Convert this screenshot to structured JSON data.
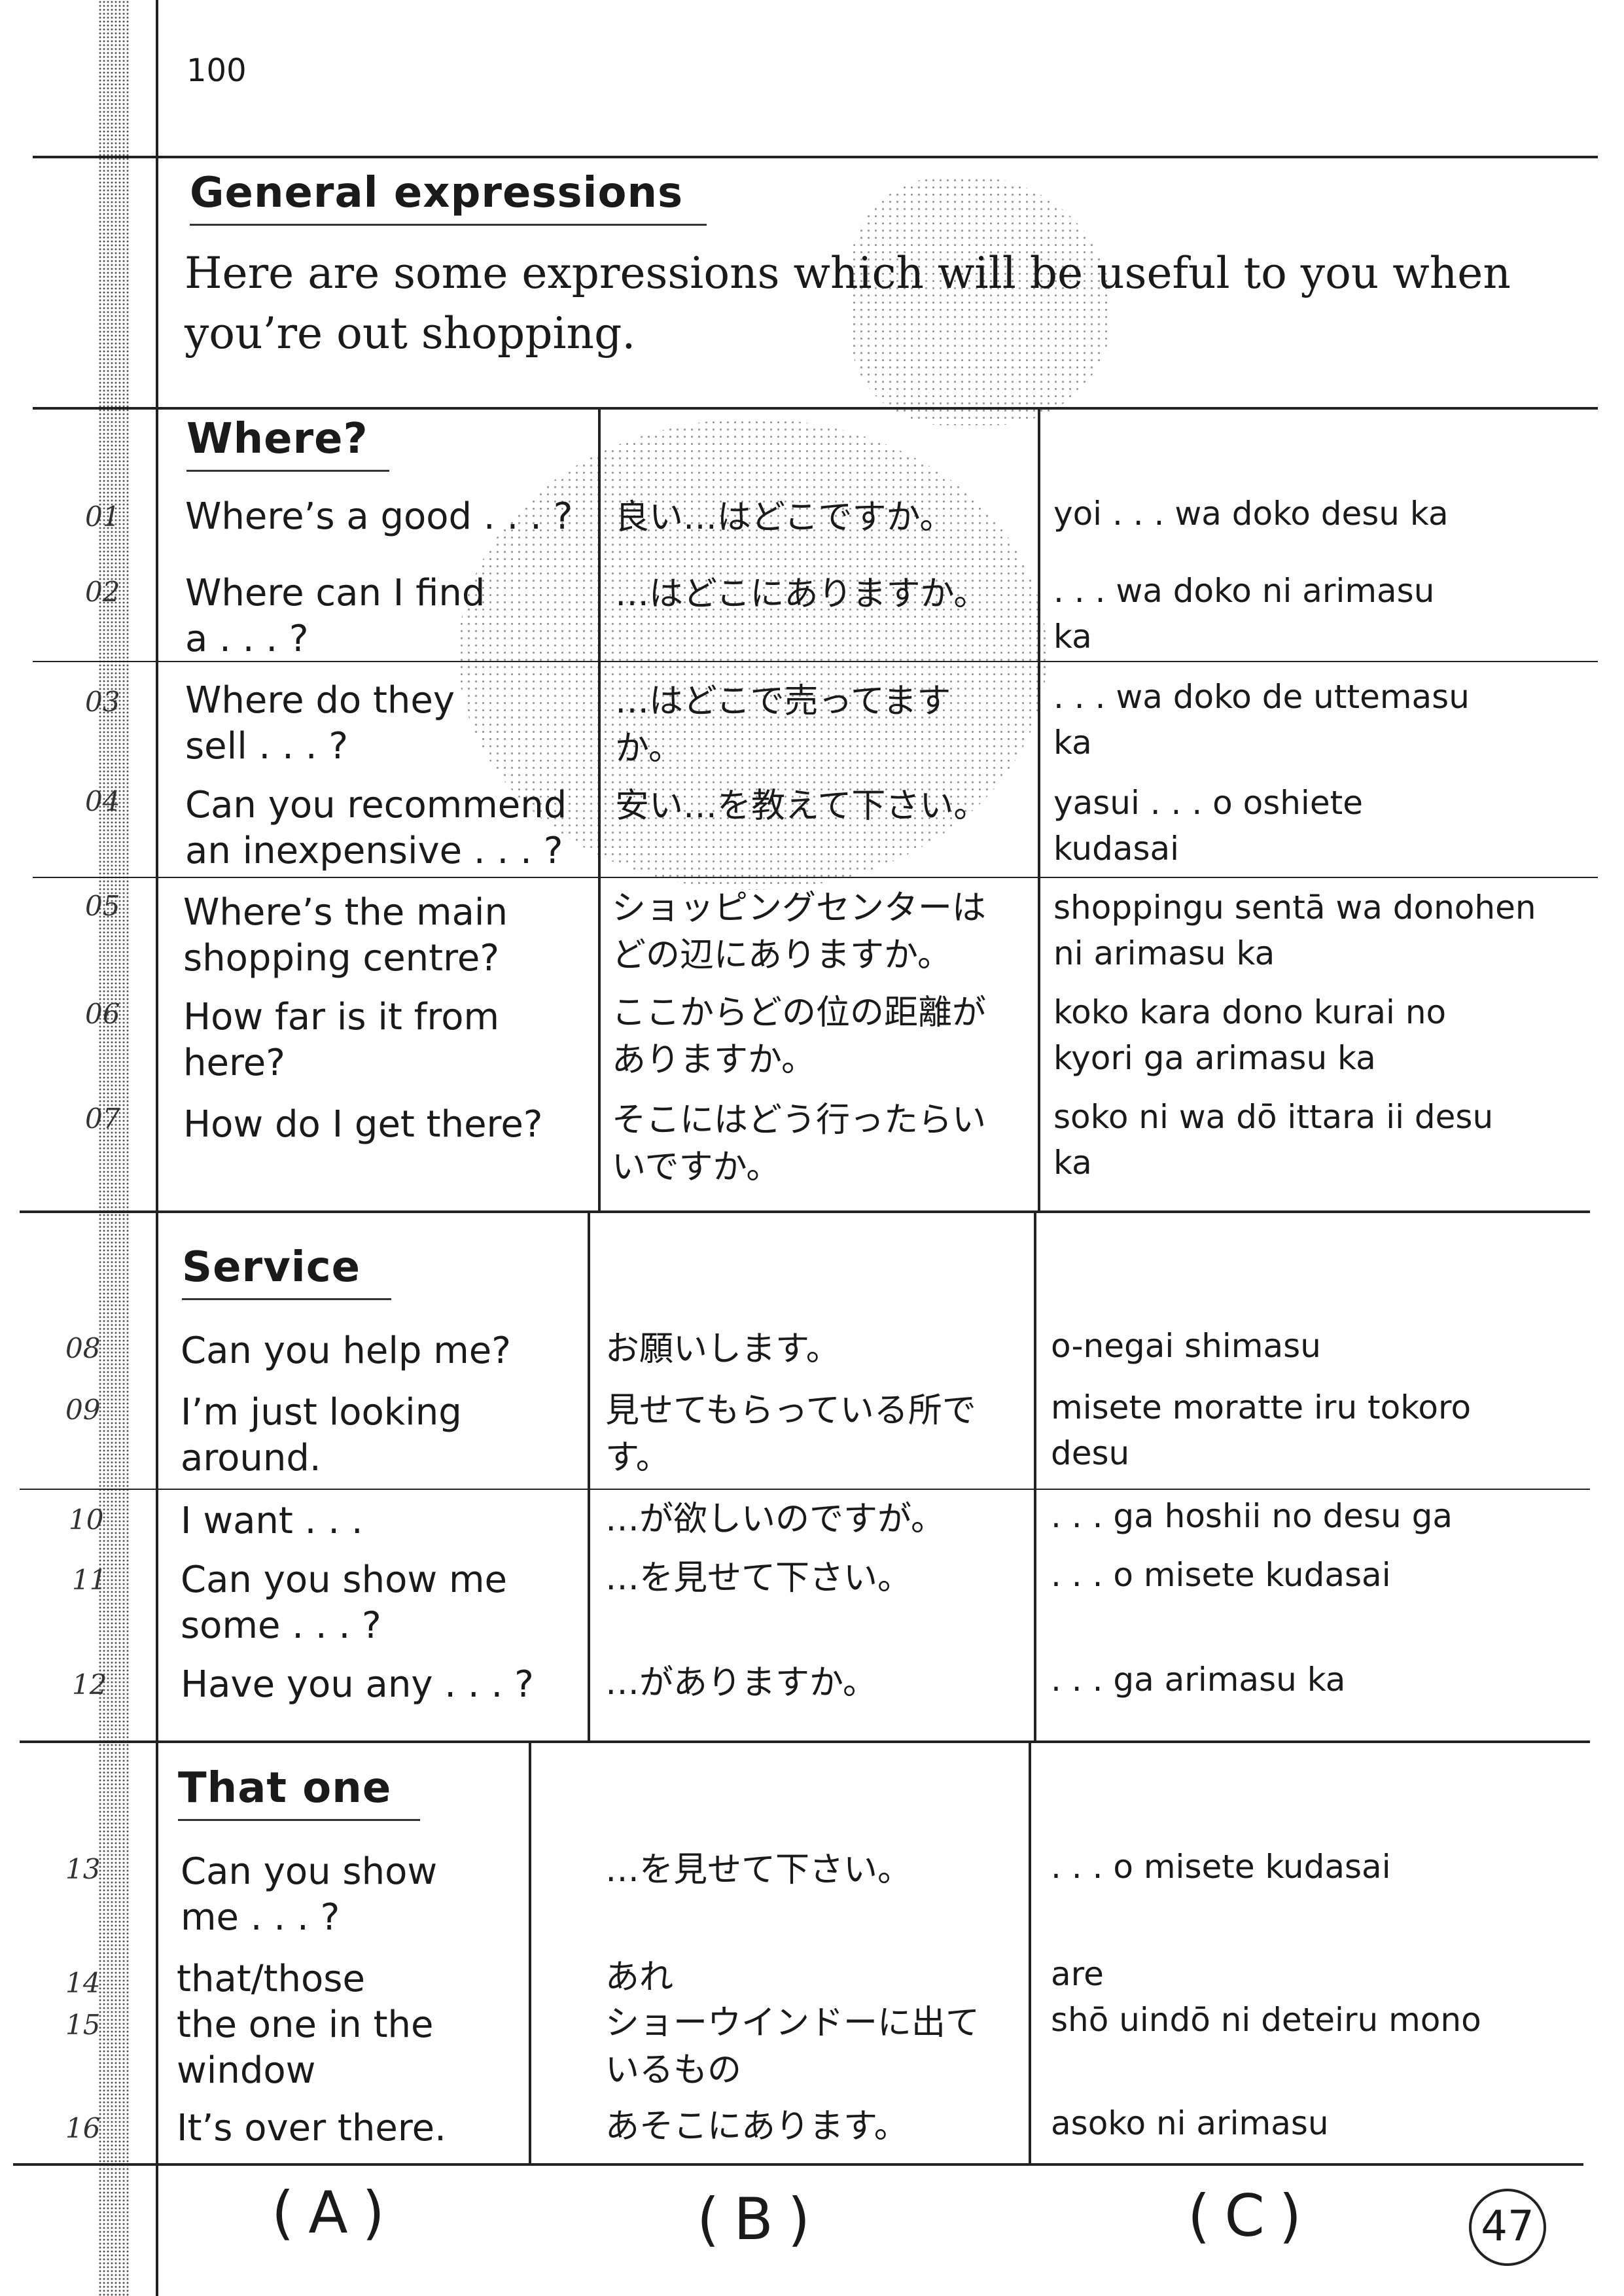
{
  "page_number": "100",
  "section_title": "General expressions",
  "intro": "Here are some expressions which will be useful to you when you’re out shopping.",
  "sections": [
    {
      "title": "Where?"
    },
    {
      "title": "Service"
    },
    {
      "title": "That one"
    }
  ],
  "rows": [
    {
      "num": "01",
      "en": "Where’s a good . . . ?",
      "jp": "良い…はどこですか。",
      "ro": "yoi . . . wa doko desu ka"
    },
    {
      "num": "02",
      "en": "Where can I find\na . . . ?",
      "jp": "…はどこにありますか。",
      "ro": ". . . wa doko ni arimasu\nka"
    },
    {
      "num": "03",
      "en": "Where do they\nsell . . . ?",
      "jp": "…はどこで売ってます\nか。",
      "ro": ". . . wa doko de uttemasu\nka"
    },
    {
      "num": "04",
      "en": "Can you recommend\nan inexpensive . . . ?",
      "jp": "安い…を教えて下さい。",
      "ro": "yasui . . . o oshiete\nkudasai"
    },
    {
      "num": "05",
      "en": "Where’s the main\nshopping centre?",
      "jp": "ショッピングセンターは\nどの辺にありますか。",
      "ro": "shoppingu sentā wa donohen\nni arimasu ka"
    },
    {
      "num": "06",
      "en": "How far is it from\nhere?",
      "jp": "ここからどの位の距離が\nありますか。",
      "ro": "koko kara dono kurai no\nkyori ga arimasu ka"
    },
    {
      "num": "07",
      "en": "How do I get there?",
      "jp": "そこにはどう行ったらい\nいですか。",
      "ro": "soko ni wa dō ittara ii desu\nka"
    },
    {
      "num": "08",
      "en": "Can you help me?",
      "jp": "お願いします。",
      "ro": "o-negai shimasu"
    },
    {
      "num": "09",
      "en": "I’m just looking\naround.",
      "jp": "見せてもらっている所で\nす。",
      "ro": "misete moratte iru tokoro\ndesu"
    },
    {
      "num": "10",
      "en": "I want . . .",
      "jp": "…が欲しいのですが。",
      "ro": ". . . ga hoshii no desu ga"
    },
    {
      "num": "11",
      "en": "Can you show me\nsome . . . ?",
      "jp": "…を見せて下さい。",
      "ro": ". . . o misete kudasai"
    },
    {
      "num": "12",
      "en": "Have you any . . . ?",
      "jp": "…がありますか。",
      "ro": ". . . ga arimasu ka"
    },
    {
      "num": "13",
      "en": "Can you show\nme . . . ?",
      "jp": "…を見せて下さい。",
      "ro": ". . . o misete kudasai"
    },
    {
      "num": "14",
      "en": "that/those",
      "jp": "あれ",
      "ro": "are"
    },
    {
      "num": "15",
      "en": "the one in the\n    window",
      "jp": "ショーウインドーに出て\n    いるもの",
      "ro": "shō uindō ni deteiru mono"
    },
    {
      "num": "16",
      "en": "It’s over there.",
      "jp": "あそこにあります。",
      "ro": "asoko ni arimasu"
    }
  ],
  "footer": {
    "col_a": "(A)",
    "col_b": "(B)",
    "col_c": "(C)",
    "circled": "47"
  }
}
